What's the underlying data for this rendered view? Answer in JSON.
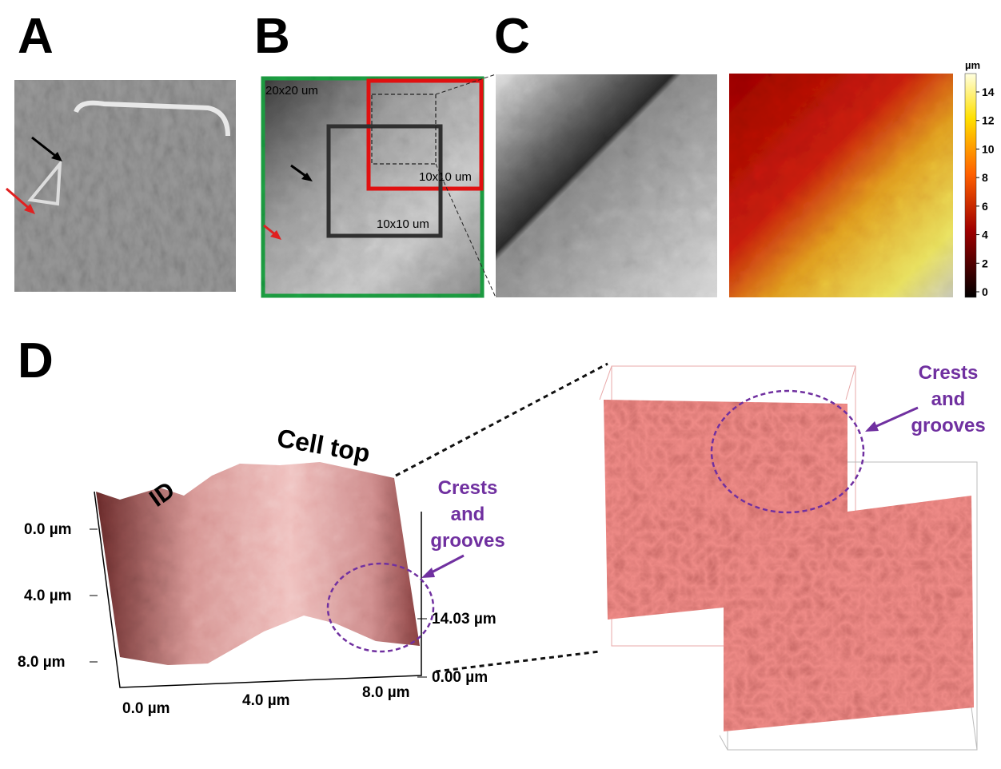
{
  "panels": {
    "a": {
      "label": "A"
    },
    "b": {
      "label": "B",
      "scale_outer": "20x20 um",
      "scale_red": "10x10 um",
      "scale_black": "10x10 um"
    },
    "c": {
      "label": "C",
      "colorbar": {
        "unit": "µm",
        "ticks": [
          14,
          12,
          10,
          8,
          6,
          4,
          2,
          0
        ]
      }
    },
    "d": {
      "label": "D",
      "y_ticks": [
        "0.0 µm",
        "4.0 µm",
        "8.0 µm"
      ],
      "x_ticks": [
        "0.0 µm",
        "4.0 µm",
        "8.0 µm"
      ],
      "z_ticks": [
        "14.03 µm",
        "0.00 µm"
      ],
      "annotations": {
        "id": "ID",
        "cell_top": "Cell top",
        "crests_left": [
          "Crests",
          "and",
          "grooves"
        ],
        "crests_right": [
          "Crests",
          "and",
          "grooves"
        ]
      }
    }
  }
}
